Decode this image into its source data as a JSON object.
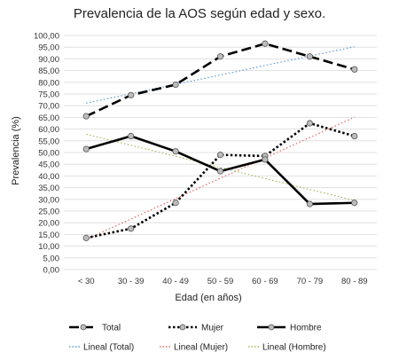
{
  "chart_data": {
    "type": "line",
    "title": "Prevalencia de la AOS según edad y sexo.",
    "xlabel": "Edad (en años)",
    "ylabel": "Prevalencia (%)",
    "categories": [
      "< 30",
      "30 - 39",
      "40 - 49",
      "50 - 59",
      "60 - 69",
      "70 - 79",
      "80 - 89"
    ],
    "ylim": [
      0,
      100
    ],
    "ytick_labels": [
      "0,00",
      "5,00",
      "10,00",
      "15,00",
      "20,00",
      "25,00",
      "30,00",
      "35,00",
      "40,00",
      "45,00",
      "50,00",
      "55,00",
      "60,00",
      "65,00",
      "70,00",
      "75,00",
      "80,00",
      "85,00",
      "90,00",
      "95,00",
      "100,00"
    ],
    "grid": true,
    "legend_position": "bottom",
    "series": [
      {
        "name": "Total",
        "values": [
          65.5,
          74.5,
          79,
          91,
          96.5,
          91,
          85.5
        ],
        "color": "#000000",
        "style": "dashed"
      },
      {
        "name": "Mujer",
        "values": [
          13.5,
          17.5,
          28.5,
          49,
          48.5,
          62.5,
          57
        ],
        "color": "#000000",
        "style": "dotted"
      },
      {
        "name": "Hombre",
        "values": [
          51.5,
          57,
          50.5,
          42,
          47,
          28,
          28.5
        ],
        "color": "#000000",
        "style": "solid"
      }
    ],
    "trendlines": [
      {
        "name": "Lineal (Total)",
        "values": [
          71.1,
          75.1,
          79.1,
          83.1,
          87.2,
          91.2,
          95.2
        ],
        "color": "#5b9bd5"
      },
      {
        "name": "Lineal (Mujer)",
        "values": [
          12.9,
          21.6,
          30.3,
          39.0,
          47.7,
          56.4,
          65.1
        ],
        "color": "#e06666"
      },
      {
        "name": "Lineal (Hombre)",
        "values": [
          57.8,
          53.1,
          48.4,
          43.6,
          38.9,
          34.2,
          29.5
        ],
        "color": "#a8b95a"
      }
    ]
  }
}
